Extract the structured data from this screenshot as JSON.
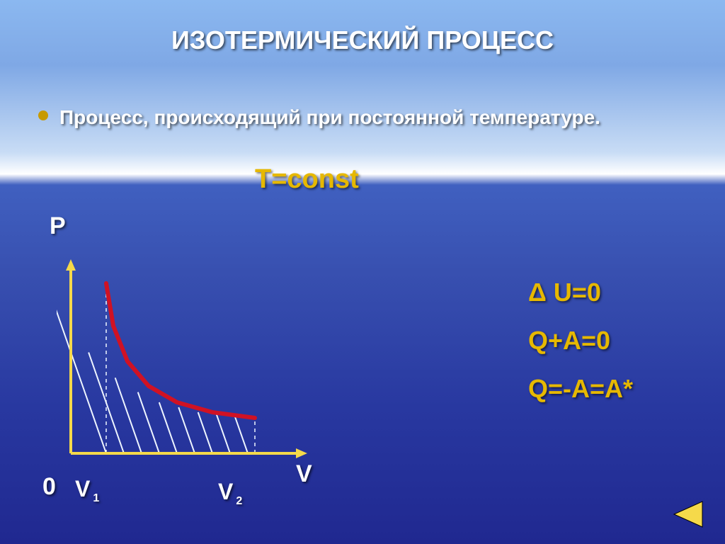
{
  "title": "ИЗОТЕРМИЧЕСКИЙ ПРОЦЕСС",
  "bullet": {
    "dot_color": "#c79a00",
    "text": "Процесс, происходящий при постоянной температуре."
  },
  "constant_eq": {
    "text": "T=const",
    "color": "#e6b800"
  },
  "formulas": {
    "color": "#e6b800",
    "items": [
      {
        "prefix_symbol": "Δ",
        "text": " U=0"
      },
      {
        "prefix_symbol": "",
        "text": "Q+A=0"
      },
      {
        "prefix_symbol": "",
        "text": "Q=-A=A*"
      }
    ]
  },
  "chart": {
    "type": "line",
    "axis_color": "#f5d94a",
    "curve_color": "#d01224",
    "curve_width": 6,
    "hatch_color": "#eef5ff",
    "hatch_width": 2,
    "background": "transparent",
    "origin_label": "0",
    "x_label": "V",
    "y_label": "P",
    "v1_label": "V",
    "v1_sub": "1",
    "v2_label": "V",
    "v2_sub": "2",
    "x_range": [
      0,
      320
    ],
    "y_range": [
      0,
      260
    ],
    "curve_points": [
      {
        "x": 50,
        "y": 240
      },
      {
        "x": 60,
        "y": 180
      },
      {
        "x": 80,
        "y": 130
      },
      {
        "x": 110,
        "y": 95
      },
      {
        "x": 150,
        "y": 72
      },
      {
        "x": 200,
        "y": 58
      },
      {
        "x": 260,
        "y": 50
      }
    ],
    "v1_x": 50,
    "v2_x": 260,
    "hatch_lines": [
      50,
      75,
      100,
      125,
      150,
      175,
      200,
      225,
      250
    ]
  },
  "nav": {
    "back_color": "#f5d94a"
  }
}
